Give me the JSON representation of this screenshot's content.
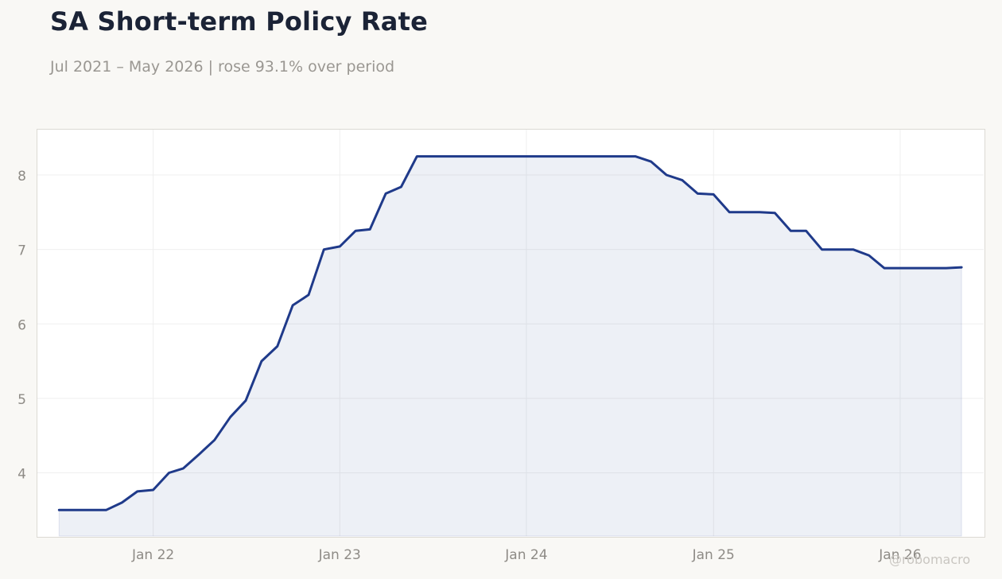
{
  "title": "SA Short-term Policy Rate",
  "subtitle": "Jul 2021 – May 2026 | rose 93.1% over period",
  "watermark": "@robomacro",
  "colors": {
    "line": "#1f3a8a",
    "area_fill": "#1f3a8a",
    "background": "#f9f8f5",
    "plot_background": "#ffffff",
    "grid": "#efefef",
    "tick_text": "#8e8b86"
  },
  "chart_data": {
    "type": "area",
    "ylim": [
      3.14,
      8.62
    ],
    "xlim": [
      "2021-05-18",
      "2026-06-15"
    ],
    "yticks": [
      4,
      5,
      6,
      7,
      8
    ],
    "xticks": [
      {
        "date": "2022-01-01",
        "label": "Jan 22"
      },
      {
        "date": "2023-01-01",
        "label": "Jan 23"
      },
      {
        "date": "2024-01-01",
        "label": "Jan 24"
      },
      {
        "date": "2025-01-01",
        "label": "Jan 25"
      },
      {
        "date": "2026-01-01",
        "label": "Jan 26"
      }
    ],
    "grid": true,
    "series": [
      {
        "points": [
          [
            "2021-07-01",
            3.5
          ],
          [
            "2021-08-01",
            3.5
          ],
          [
            "2021-09-01",
            3.5
          ],
          [
            "2021-10-01",
            3.5
          ],
          [
            "2021-11-01",
            3.6
          ],
          [
            "2021-12-01",
            3.75
          ],
          [
            "2022-01-01",
            3.77
          ],
          [
            "2022-02-01",
            4.0
          ],
          [
            "2022-03-01",
            4.06
          ],
          [
            "2022-04-01",
            4.25
          ],
          [
            "2022-05-01",
            4.44
          ],
          [
            "2022-06-01",
            4.75
          ],
          [
            "2022-07-01",
            4.97
          ],
          [
            "2022-08-01",
            5.5
          ],
          [
            "2022-09-01",
            5.7
          ],
          [
            "2022-10-01",
            6.25
          ],
          [
            "2022-11-01",
            6.39
          ],
          [
            "2022-12-01",
            7.0
          ],
          [
            "2023-01-01",
            7.04
          ],
          [
            "2023-02-01",
            7.25
          ],
          [
            "2023-03-01",
            7.27
          ],
          [
            "2023-04-01",
            7.75
          ],
          [
            "2023-05-01",
            7.84
          ],
          [
            "2023-06-01",
            8.25
          ],
          [
            "2023-07-01",
            8.25
          ],
          [
            "2023-08-01",
            8.25
          ],
          [
            "2023-09-01",
            8.25
          ],
          [
            "2023-10-01",
            8.25
          ],
          [
            "2023-11-01",
            8.25
          ],
          [
            "2023-12-01",
            8.25
          ],
          [
            "2024-01-01",
            8.25
          ],
          [
            "2024-02-01",
            8.25
          ],
          [
            "2024-03-01",
            8.25
          ],
          [
            "2024-04-01",
            8.25
          ],
          [
            "2024-05-01",
            8.25
          ],
          [
            "2024-06-01",
            8.25
          ],
          [
            "2024-07-01",
            8.25
          ],
          [
            "2024-08-01",
            8.25
          ],
          [
            "2024-09-01",
            8.18
          ],
          [
            "2024-10-01",
            8.0
          ],
          [
            "2024-11-01",
            7.93
          ],
          [
            "2024-12-01",
            7.75
          ],
          [
            "2025-01-01",
            7.74
          ],
          [
            "2025-02-01",
            7.5
          ],
          [
            "2025-03-01",
            7.5
          ],
          [
            "2025-04-01",
            7.5
          ],
          [
            "2025-05-01",
            7.49
          ],
          [
            "2025-06-01",
            7.25
          ],
          [
            "2025-07-01",
            7.25
          ],
          [
            "2025-08-01",
            7.0
          ],
          [
            "2025-09-01",
            7.0
          ],
          [
            "2025-10-01",
            7.0
          ],
          [
            "2025-11-01",
            6.92
          ],
          [
            "2025-12-01",
            6.75
          ],
          [
            "2026-01-01",
            6.75
          ],
          [
            "2026-02-01",
            6.75
          ],
          [
            "2026-03-01",
            6.75
          ],
          [
            "2026-04-01",
            6.75
          ],
          [
            "2026-05-01",
            6.76
          ]
        ]
      }
    ]
  }
}
